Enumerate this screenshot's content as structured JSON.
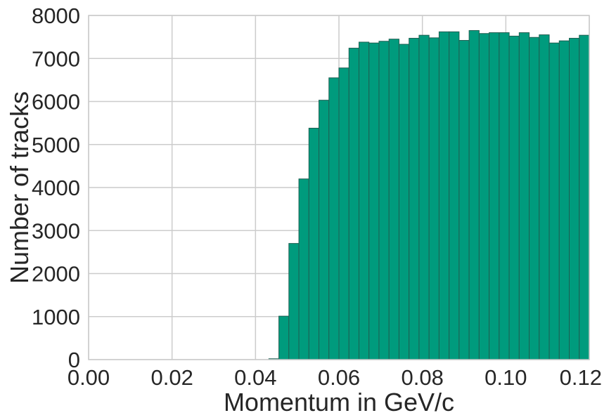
{
  "chart_data": {
    "type": "bar",
    "title": "",
    "xlabel": "Momentum in GeV/c",
    "ylabel": "Number of tracks",
    "xlim": [
      0.0,
      0.12
    ],
    "ylim": [
      0,
      8000
    ],
    "xticks": [
      "0.00",
      "0.02",
      "0.04",
      "0.06",
      "0.08",
      "0.10",
      "0.12"
    ],
    "xtick_values": [
      0.0,
      0.02,
      0.04,
      0.06,
      0.08,
      0.1,
      0.12
    ],
    "yticks": [
      "0",
      "1000",
      "2000",
      "3000",
      "4000",
      "5000",
      "6000",
      "7000",
      "8000"
    ],
    "ytick_values": [
      0,
      1000,
      2000,
      3000,
      4000,
      5000,
      6000,
      7000,
      8000
    ],
    "grid": true,
    "bar_color": "#009b7d",
    "bin_width": 0.0024,
    "bin_starts": [
      0.0432,
      0.0456,
      0.048,
      0.0504,
      0.0528,
      0.0552,
      0.0576,
      0.06,
      0.0624,
      0.0648,
      0.0672,
      0.0696,
      0.072,
      0.0744,
      0.0768,
      0.0792,
      0.0816,
      0.084,
      0.0864,
      0.0888,
      0.0912,
      0.0936,
      0.096,
      0.0984,
      0.1008,
      0.1032,
      0.1056,
      0.108,
      0.1104,
      0.1128,
      0.1152,
      0.1176
    ],
    "values": [
      20,
      1010,
      2700,
      4200,
      5380,
      6030,
      6550,
      6780,
      7240,
      7380,
      7360,
      7400,
      7450,
      7330,
      7470,
      7540,
      7480,
      7620,
      7620,
      7420,
      7650,
      7580,
      7600,
      7600,
      7520,
      7600,
      7490,
      7550,
      7360,
      7410,
      7470,
      7540
    ]
  }
}
